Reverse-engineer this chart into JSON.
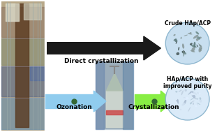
{
  "background_color": "#f5f5f5",
  "top_arrow_label": "Direct crystallization",
  "bottom_arrow1_label": "Ozonation",
  "bottom_arrow2_label": "Crystallization",
  "top_result_label": "Crude HAp/ACP",
  "bottom_result_label": "HAp/ACP with\nimproved purity",
  "top_arrow_color": "#111111",
  "bottom_arrow1_color": "#90ccee",
  "bottom_arrow2_color": "#88ee44",
  "dot_color": "#336633",
  "label_fontsize": 6.5,
  "result_fontsize": 5.5,
  "white_bg": "#ffffff"
}
